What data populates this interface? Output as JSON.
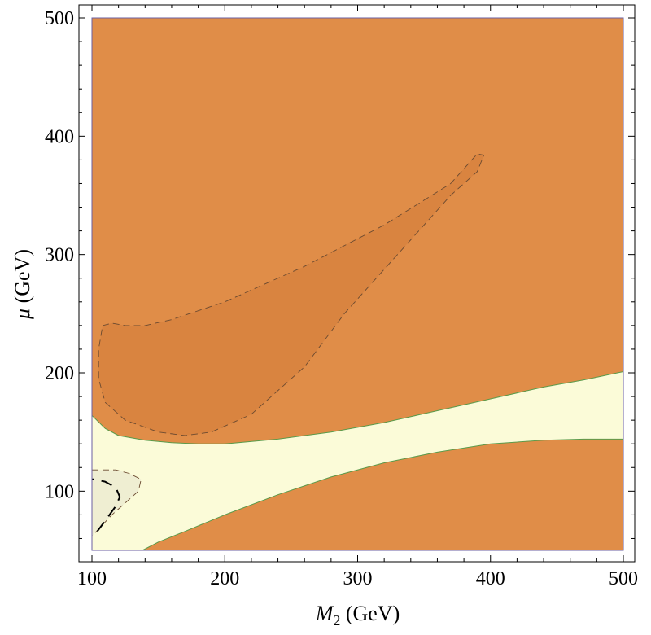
{
  "chart_data": {
    "type": "contour",
    "xlabel": {
      "symbol": "M",
      "sub": "2",
      "unit": " (GeV)"
    },
    "ylabel": {
      "symbol": "μ",
      "unit": " (GeV)"
    },
    "xlim": [
      100,
      500
    ],
    "ylim": [
      50,
      500
    ],
    "xticks": [
      100,
      200,
      300,
      400,
      500
    ],
    "yticks": [
      100,
      200,
      300,
      400,
      500
    ],
    "grid": false,
    "colors": {
      "excluded": "#e08d48",
      "excluded_inner": "#d98440",
      "allowed": "#fbfbd8",
      "allowed_inner": "#efeed2",
      "boundary": "#5a9a4a",
      "frame": "#6b5fa0"
    },
    "regions": [
      {
        "name": "upper excluded",
        "fill": "excluded",
        "polygon": [
          [
            100,
            500
          ],
          [
            500,
            500
          ],
          [
            500,
            201
          ],
          [
            470,
            194
          ],
          [
            440,
            188
          ],
          [
            400,
            178
          ],
          [
            360,
            168
          ],
          [
            320,
            158
          ],
          [
            280,
            150
          ],
          [
            240,
            144
          ],
          [
            200,
            140
          ],
          [
            180,
            140
          ],
          [
            160,
            141
          ],
          [
            140,
            143
          ],
          [
            120,
            147
          ],
          [
            110,
            153
          ],
          [
            100,
            164
          ]
        ]
      },
      {
        "name": "lower excluded",
        "fill": "excluded",
        "polygon": [
          [
            138,
            50
          ],
          [
            500,
            50
          ],
          [
            500,
            144
          ],
          [
            470,
            144
          ],
          [
            440,
            143
          ],
          [
            400,
            140
          ],
          [
            360,
            133
          ],
          [
            320,
            124
          ],
          [
            280,
            112
          ],
          [
            240,
            97
          ],
          [
            200,
            80
          ],
          [
            170,
            66
          ],
          [
            150,
            57
          ]
        ]
      },
      {
        "name": "upper inner contour",
        "fill": "excluded_inner",
        "dash": "dashed-thin",
        "polygon": [
          [
            108,
            240
          ],
          [
            115,
            242
          ],
          [
            125,
            240
          ],
          [
            140,
            240
          ],
          [
            160,
            245
          ],
          [
            200,
            260
          ],
          [
            260,
            290
          ],
          [
            320,
            325
          ],
          [
            370,
            360
          ],
          [
            390,
            385
          ],
          [
            395,
            384
          ],
          [
            390,
            370
          ],
          [
            370,
            350
          ],
          [
            330,
            300
          ],
          [
            290,
            250
          ],
          [
            260,
            205
          ],
          [
            220,
            165
          ],
          [
            190,
            150
          ],
          [
            170,
            147
          ],
          [
            150,
            150
          ],
          [
            125,
            160
          ],
          [
            110,
            175
          ],
          [
            105,
            195
          ],
          [
            105,
            220
          ]
        ]
      },
      {
        "name": "lower-left inner contour",
        "fill": "allowed_inner",
        "dash": "dashed-thin",
        "polygon": [
          [
            100,
            118
          ],
          [
            118,
            118
          ],
          [
            128,
            115
          ],
          [
            137,
            110
          ],
          [
            135,
            100
          ],
          [
            125,
            90
          ],
          [
            115,
            80
          ],
          [
            100,
            62
          ]
        ]
      }
    ],
    "lines": [
      {
        "name": "lower-left thick dashed contour",
        "dash": "dashed-thick",
        "points": [
          [
            104,
            66
          ],
          [
            110,
            75
          ],
          [
            117,
            86
          ],
          [
            121,
            95
          ],
          [
            118,
            103
          ],
          [
            110,
            108
          ],
          [
            102,
            110
          ],
          [
            100,
            110
          ]
        ]
      }
    ]
  }
}
